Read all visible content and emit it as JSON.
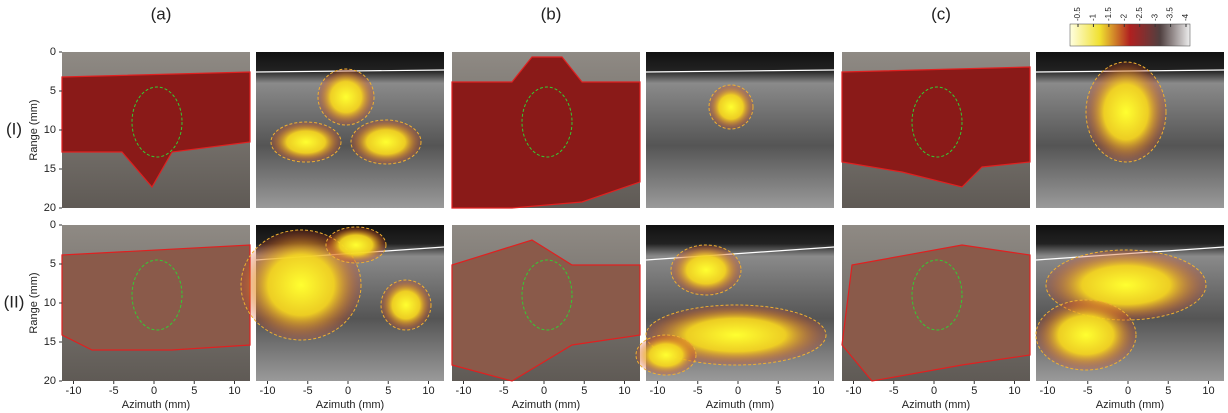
{
  "columns": [
    "(a)",
    "(b)",
    "(c)"
  ],
  "rows": [
    "(I)",
    "(II)"
  ],
  "y_axis": {
    "label": "Range (mm)",
    "ticks": [
      0,
      5,
      10,
      15,
      20
    ]
  },
  "x_axis": {
    "label": "Azimuth (mm)",
    "ticks": [
      -10,
      -5,
      0,
      5,
      10
    ]
  },
  "colorbar": {
    "ticks": [
      -0.5,
      -1,
      -1.5,
      -2,
      -2.5,
      -3,
      -3.5,
      -4
    ]
  }
}
